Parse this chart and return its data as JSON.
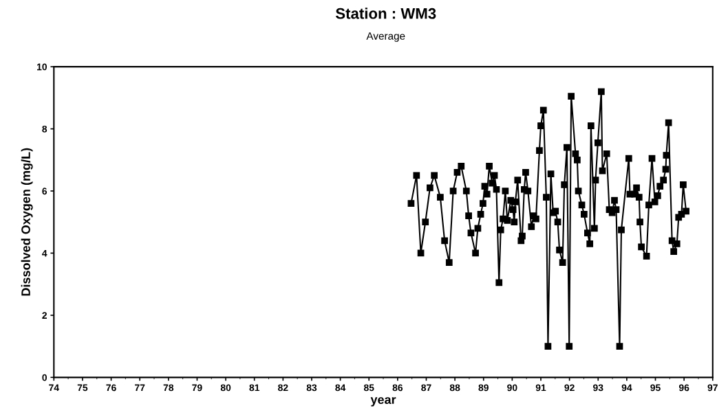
{
  "chart_data": {
    "type": "line",
    "title": "Station : WM3",
    "subtitle": "Average",
    "xlabel": "year",
    "ylabel": "Dissolved Oxygen (mg/L)",
    "xlim": [
      74,
      97
    ],
    "xticks": [
      74,
      75,
      76,
      77,
      78,
      79,
      80,
      81,
      82,
      83,
      84,
      85,
      86,
      87,
      88,
      89,
      90,
      91,
      92,
      93,
      94,
      95,
      96,
      97
    ],
    "ylim": [
      0,
      10
    ],
    "yticks": [
      0,
      2,
      4,
      6,
      8,
      10
    ],
    "grid": false,
    "legend": false,
    "marker": "square",
    "line_style": "solid",
    "series": [
      {
        "color": "#000000",
        "x": [
          86.47,
          86.66,
          86.81,
          86.97,
          87.13,
          87.28,
          87.49,
          87.64,
          87.8,
          87.94,
          88.08,
          88.22,
          88.4,
          88.48,
          88.56,
          88.72,
          88.8,
          88.9,
          88.98,
          89.04,
          89.12,
          89.2,
          89.3,
          89.38,
          89.45,
          89.54,
          89.6,
          89.68,
          89.76,
          89.83,
          89.95,
          90.03,
          90.07,
          90.11,
          90.19,
          90.31,
          90.35,
          90.42,
          90.47,
          90.55,
          90.67,
          90.75,
          90.83,
          90.95,
          91.0,
          91.09,
          91.19,
          91.25,
          91.35,
          91.43,
          91.51,
          91.59,
          91.65,
          91.76,
          91.82,
          91.91,
          91.99,
          92.06,
          92.21,
          92.27,
          92.31,
          92.43,
          92.51,
          92.63,
          92.71,
          92.75,
          92.87,
          92.91,
          92.99,
          93.11,
          93.15,
          93.3,
          93.39,
          93.49,
          93.57,
          93.63,
          93.75,
          93.81,
          94.07,
          94.11,
          94.27,
          94.34,
          94.43,
          94.46,
          94.51,
          94.69,
          94.77,
          94.88,
          94.98,
          95.08,
          95.16,
          95.28,
          95.36,
          95.38,
          95.46,
          95.58,
          95.64,
          95.75,
          95.81,
          95.91,
          95.97,
          96.07
        ],
        "values": [
          5.6,
          6.5,
          4.0,
          5.0,
          6.1,
          6.5,
          5.8,
          4.4,
          3.7,
          6.0,
          6.6,
          6.8,
          6.0,
          5.2,
          4.65,
          4.0,
          4.8,
          5.25,
          5.6,
          6.15,
          5.9,
          6.8,
          6.25,
          6.5,
          6.05,
          3.05,
          4.75,
          5.1,
          6.0,
          5.05,
          5.7,
          5.4,
          5.0,
          5.65,
          6.35,
          4.4,
          4.55,
          6.05,
          6.6,
          6.0,
          4.85,
          5.2,
          5.1,
          7.3,
          8.1,
          8.6,
          5.8,
          1.0,
          6.55,
          5.3,
          5.35,
          5.0,
          4.1,
          3.7,
          6.2,
          7.4,
          1.0,
          9.05,
          7.2,
          7.0,
          6.0,
          5.55,
          5.25,
          4.65,
          4.3,
          8.1,
          4.8,
          6.35,
          7.55,
          9.2,
          6.65,
          7.2,
          5.4,
          5.3,
          5.7,
          5.4,
          1.0,
          4.75,
          7.05,
          5.9,
          5.9,
          6.1,
          5.8,
          5.0,
          4.2,
          3.9,
          5.55,
          7.05,
          5.65,
          5.85,
          6.15,
          6.35,
          6.7,
          7.15,
          8.2,
          4.4,
          4.05,
          4.3,
          5.15,
          5.25,
          6.2,
          5.35
        ]
      }
    ]
  }
}
